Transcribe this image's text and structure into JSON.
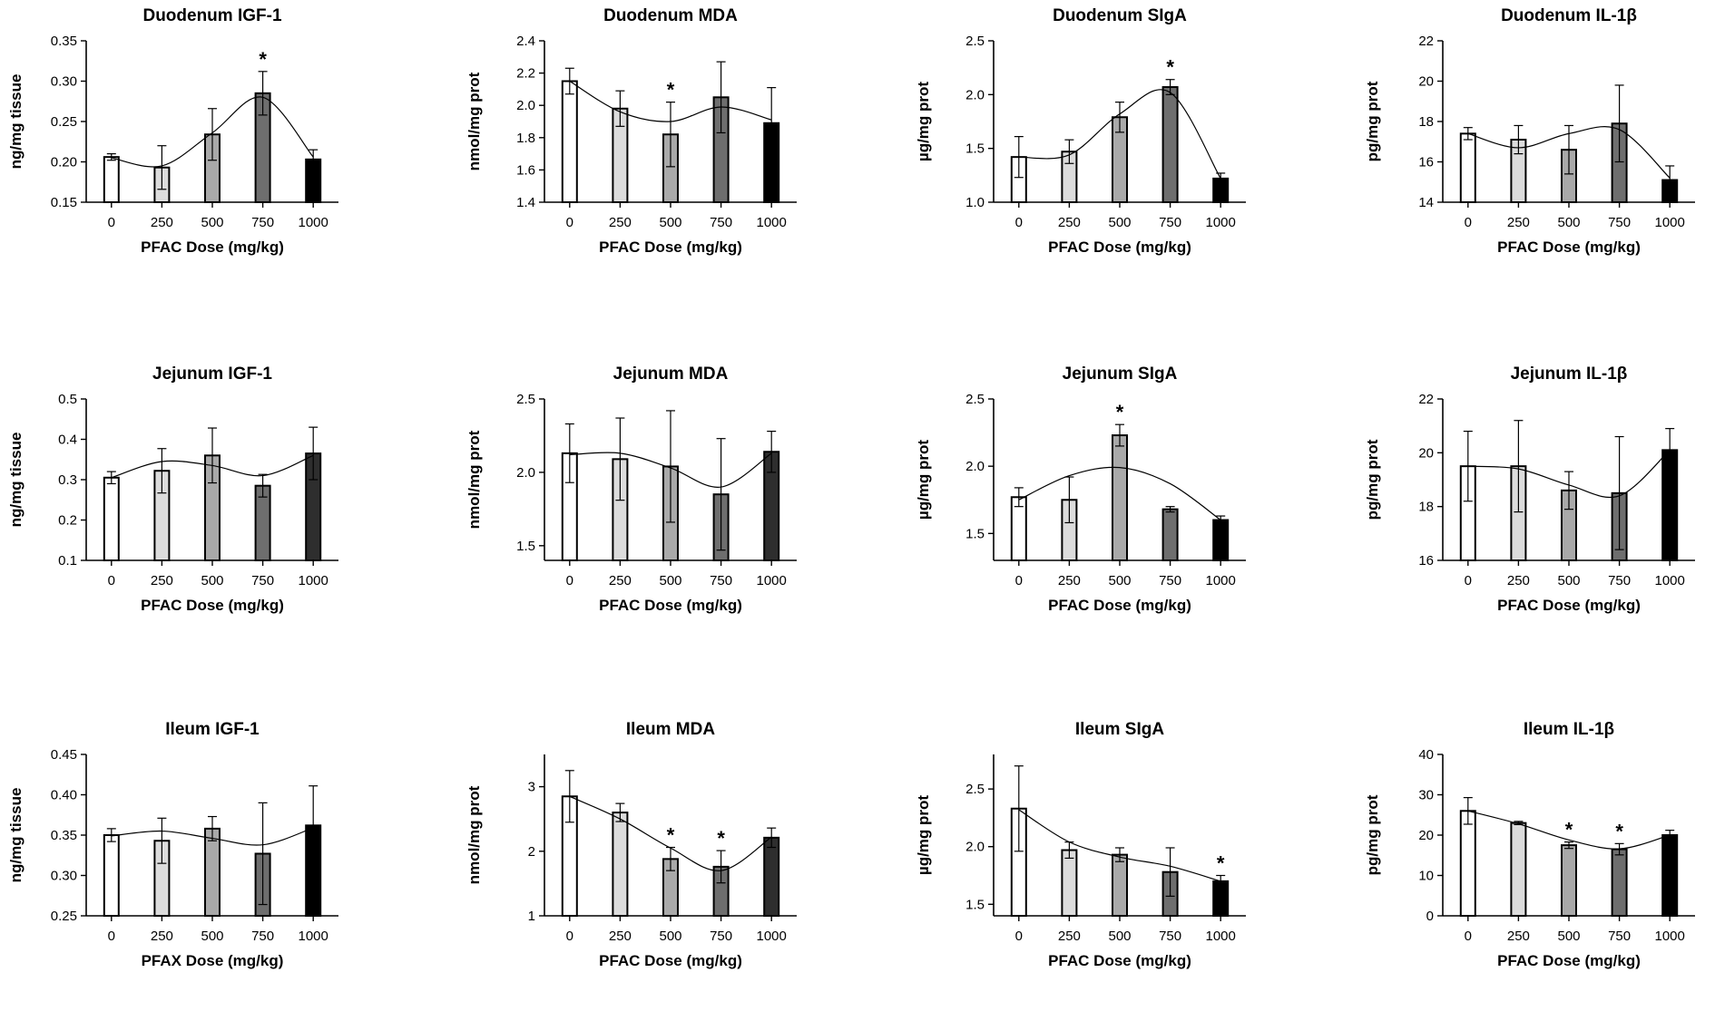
{
  "figure": {
    "bar_colors": [
      "#ffffff",
      "#dcdcdc",
      "#a9a9a9",
      "#6e6e6e",
      "#000000"
    ]
  },
  "chart_data": [
    {
      "id": "duo-igf",
      "type": "bar",
      "title": "Duodenum IGF-1",
      "xlabel": "PFAC Dose (mg/kg)",
      "ylabel": "ng/mg tissue",
      "categories": [
        "0",
        "250",
        "500",
        "750",
        "1000"
      ],
      "values": [
        0.206,
        0.193,
        0.234,
        0.285,
        0.203
      ],
      "errors": [
        0.004,
        0.027,
        0.032,
        0.027,
        0.012
      ],
      "significant": [
        false,
        false,
        false,
        true,
        false
      ],
      "ylim": [
        0.15,
        0.35
      ],
      "yticks": [
        "0.15",
        "0.20",
        "0.25",
        "0.30",
        "0.35"
      ],
      "curve": [
        0.205,
        0.195,
        0.236,
        0.28,
        0.206
      ],
      "last_color": "#000000"
    },
    {
      "id": "duo-mda",
      "type": "bar",
      "title": "Duodenum MDA",
      "xlabel": "PFAC Dose (mg/kg)",
      "ylabel": "nmol/mg prot",
      "categories": [
        "0",
        "250",
        "500",
        "750",
        "1000"
      ],
      "values": [
        2.15,
        1.98,
        1.82,
        2.05,
        1.89
      ],
      "errors": [
        0.08,
        0.11,
        0.2,
        0.22,
        0.22
      ],
      "significant": [
        false,
        false,
        true,
        false,
        false
      ],
      "ylim": [
        1.4,
        2.4
      ],
      "yticks": [
        "1.4",
        "1.6",
        "1.8",
        "2.0",
        "2.2",
        "2.4"
      ],
      "curve": [
        2.15,
        1.96,
        1.9,
        1.99,
        1.91
      ],
      "last_color": "#000000"
    },
    {
      "id": "duo-siga",
      "type": "bar",
      "title": "Duodenum SIgA",
      "xlabel": "PFAC Dose (mg/kg)",
      "ylabel": "µg/mg prot",
      "categories": [
        "0",
        "250",
        "500",
        "750",
        "1000"
      ],
      "values": [
        1.42,
        1.47,
        1.79,
        2.07,
        1.22
      ],
      "errors": [
        0.19,
        0.11,
        0.14,
        0.07,
        0.05
      ],
      "significant": [
        false,
        false,
        false,
        true,
        false
      ],
      "ylim": [
        1.0,
        2.5
      ],
      "yticks": [
        "1.0",
        "1.5",
        "2.0",
        "2.5"
      ],
      "curve": [
        1.42,
        1.44,
        1.82,
        2.02,
        1.22
      ],
      "last_color": "#000000"
    },
    {
      "id": "duo-il1b",
      "type": "bar",
      "title": "Duodenum IL-1β",
      "xlabel": "PFAC Dose (mg/kg)",
      "ylabel": "pg/mg prot",
      "categories": [
        "0",
        "250",
        "500",
        "750",
        "1000"
      ],
      "values": [
        17.4,
        17.1,
        16.6,
        17.9,
        15.1
      ],
      "errors": [
        0.3,
        0.7,
        1.2,
        1.9,
        0.7
      ],
      "significant": [
        false,
        false,
        false,
        false,
        false
      ],
      "ylim": [
        14,
        22
      ],
      "yticks": [
        "14",
        "16",
        "18",
        "20",
        "22"
      ],
      "curve": [
        17.4,
        16.7,
        17.4,
        17.6,
        15.2
      ],
      "last_color": "#000000"
    },
    {
      "id": "jej-igf",
      "type": "bar",
      "title": "Jejunum IGF-1",
      "xlabel": "PFAC Dose (mg/kg)",
      "ylabel": "ng/mg tissue",
      "categories": [
        "0",
        "250",
        "500",
        "750",
        "1000"
      ],
      "values": [
        0.305,
        0.322,
        0.36,
        0.285,
        0.365
      ],
      "errors": [
        0.015,
        0.055,
        0.068,
        0.028,
        0.065
      ],
      "significant": [
        false,
        false,
        false,
        false,
        false
      ],
      "ylim": [
        0.1,
        0.5
      ],
      "yticks": [
        "0.1",
        "0.2",
        "0.3",
        "0.4",
        "0.5"
      ],
      "curve": [
        0.305,
        0.345,
        0.335,
        0.31,
        0.36
      ],
      "last_color": "#2e2e2e"
    },
    {
      "id": "jej-mda",
      "type": "bar",
      "title": "Jejunum MDA",
      "xlabel": "PFAC Dose (mg/kg)",
      "ylabel": "nmol/mg prot",
      "categories": [
        "0",
        "250",
        "500",
        "750",
        "1000"
      ],
      "values": [
        2.13,
        2.09,
        2.04,
        1.85,
        2.14
      ],
      "errors": [
        0.2,
        0.28,
        0.38,
        0.38,
        0.14
      ],
      "significant": [
        false,
        false,
        false,
        false,
        false
      ],
      "ylim": [
        1.4,
        2.5
      ],
      "yticks": [
        "1.5",
        "2.0",
        "2.5"
      ],
      "curve": [
        2.12,
        2.13,
        2.03,
        1.9,
        2.13
      ],
      "last_color": "#2e2e2e"
    },
    {
      "id": "jej-siga",
      "type": "bar",
      "title": "Jejunum SIgA",
      "xlabel": "PFAC Dose (mg/kg)",
      "ylabel": "µg/mg prot",
      "categories": [
        "0",
        "250",
        "500",
        "750",
        "1000"
      ],
      "values": [
        1.77,
        1.75,
        2.23,
        1.68,
        1.6
      ],
      "errors": [
        0.07,
        0.17,
        0.08,
        0.02,
        0.03
      ],
      "significant": [
        false,
        false,
        true,
        false,
        false
      ],
      "ylim": [
        1.3,
        2.5
      ],
      "yticks": [
        "1.5",
        "2.0",
        "2.5"
      ],
      "curve": [
        1.75,
        1.93,
        1.99,
        1.87,
        1.6
      ],
      "last_color": "#000000"
    },
    {
      "id": "jej-il1b",
      "type": "bar",
      "title": "Jejunum IL-1β",
      "xlabel": "PFAC Dose (mg/kg)",
      "ylabel": "pg/mg prot",
      "categories": [
        "0",
        "250",
        "500",
        "750",
        "1000"
      ],
      "values": [
        19.5,
        19.5,
        18.6,
        18.5,
        20.1
      ],
      "errors": [
        1.3,
        1.7,
        0.7,
        2.1,
        0.8
      ],
      "significant": [
        false,
        false,
        false,
        false,
        false
      ],
      "ylim": [
        16,
        22
      ],
      "yticks": [
        "16",
        "18",
        "20",
        "22"
      ],
      "curve": [
        19.5,
        19.4,
        18.8,
        18.4,
        20.1
      ],
      "last_color": "#000000"
    },
    {
      "id": "ile-igf",
      "type": "bar",
      "title": "Ileum IGF-1",
      "xlabel": "PFAX Dose (mg/kg)",
      "ylabel": "ng/mg tissue",
      "categories": [
        "0",
        "250",
        "500",
        "750",
        "1000"
      ],
      "values": [
        0.35,
        0.343,
        0.358,
        0.327,
        0.362
      ],
      "errors": [
        0.008,
        0.028,
        0.015,
        0.063,
        0.049
      ],
      "significant": [
        false,
        false,
        false,
        false,
        false
      ],
      "ylim": [
        0.25,
        0.45
      ],
      "yticks": [
        "0.25",
        "0.30",
        "0.35",
        "0.40",
        "0.45"
      ],
      "curve": [
        0.349,
        0.355,
        0.346,
        0.338,
        0.359
      ],
      "last_color": "#000000"
    },
    {
      "id": "ile-mda",
      "type": "bar",
      "title": "Ileum MDA",
      "xlabel": "PFAC Dose (mg/kg)",
      "ylabel": "nmol/mg prot",
      "categories": [
        "0",
        "250",
        "500",
        "750",
        "1000"
      ],
      "values": [
        2.85,
        2.6,
        1.88,
        1.76,
        2.21
      ],
      "errors": [
        0.4,
        0.14,
        0.18,
        0.25,
        0.15
      ],
      "significant": [
        false,
        false,
        true,
        true,
        false
      ],
      "ylim": [
        1,
        3.5
      ],
      "yticks": [
        "1",
        "2",
        "3"
      ],
      "curve": [
        2.85,
        2.5,
        2.05,
        1.7,
        2.22
      ],
      "last_color": "#2e2e2e"
    },
    {
      "id": "ile-siga",
      "type": "bar",
      "title": "Ileum SIgA",
      "xlabel": "PFAC Dose (mg/kg)",
      "ylabel": "µg/mg prot",
      "categories": [
        "0",
        "250",
        "500",
        "750",
        "1000"
      ],
      "values": [
        2.33,
        1.97,
        1.93,
        1.78,
        1.7
      ],
      "errors": [
        0.37,
        0.07,
        0.06,
        0.21,
        0.05
      ],
      "significant": [
        false,
        false,
        false,
        false,
        true
      ],
      "ylim": [
        1.4,
        2.8
      ],
      "yticks": [
        "1.5",
        "2.0",
        "2.5"
      ],
      "curve": [
        2.32,
        2.04,
        1.91,
        1.83,
        1.7
      ],
      "last_color": "#000000"
    },
    {
      "id": "ile-il1b",
      "type": "bar",
      "title": "Ileum IL-1β",
      "xlabel": "PFAC Dose (mg/kg)",
      "ylabel": "pg/mg prot",
      "categories": [
        "0",
        "250",
        "500",
        "750",
        "1000"
      ],
      "values": [
        26.0,
        23.0,
        17.5,
        16.5,
        20.0
      ],
      "errors": [
        3.3,
        0.4,
        0.8,
        1.4,
        1.2
      ],
      "significant": [
        false,
        false,
        true,
        true,
        false
      ],
      "ylim": [
        0,
        40
      ],
      "yticks": [
        "0",
        "10",
        "20",
        "30",
        "40"
      ],
      "curve": [
        26.0,
        22.8,
        18.8,
        16.6,
        20.0
      ],
      "last_color": "#000000"
    }
  ]
}
